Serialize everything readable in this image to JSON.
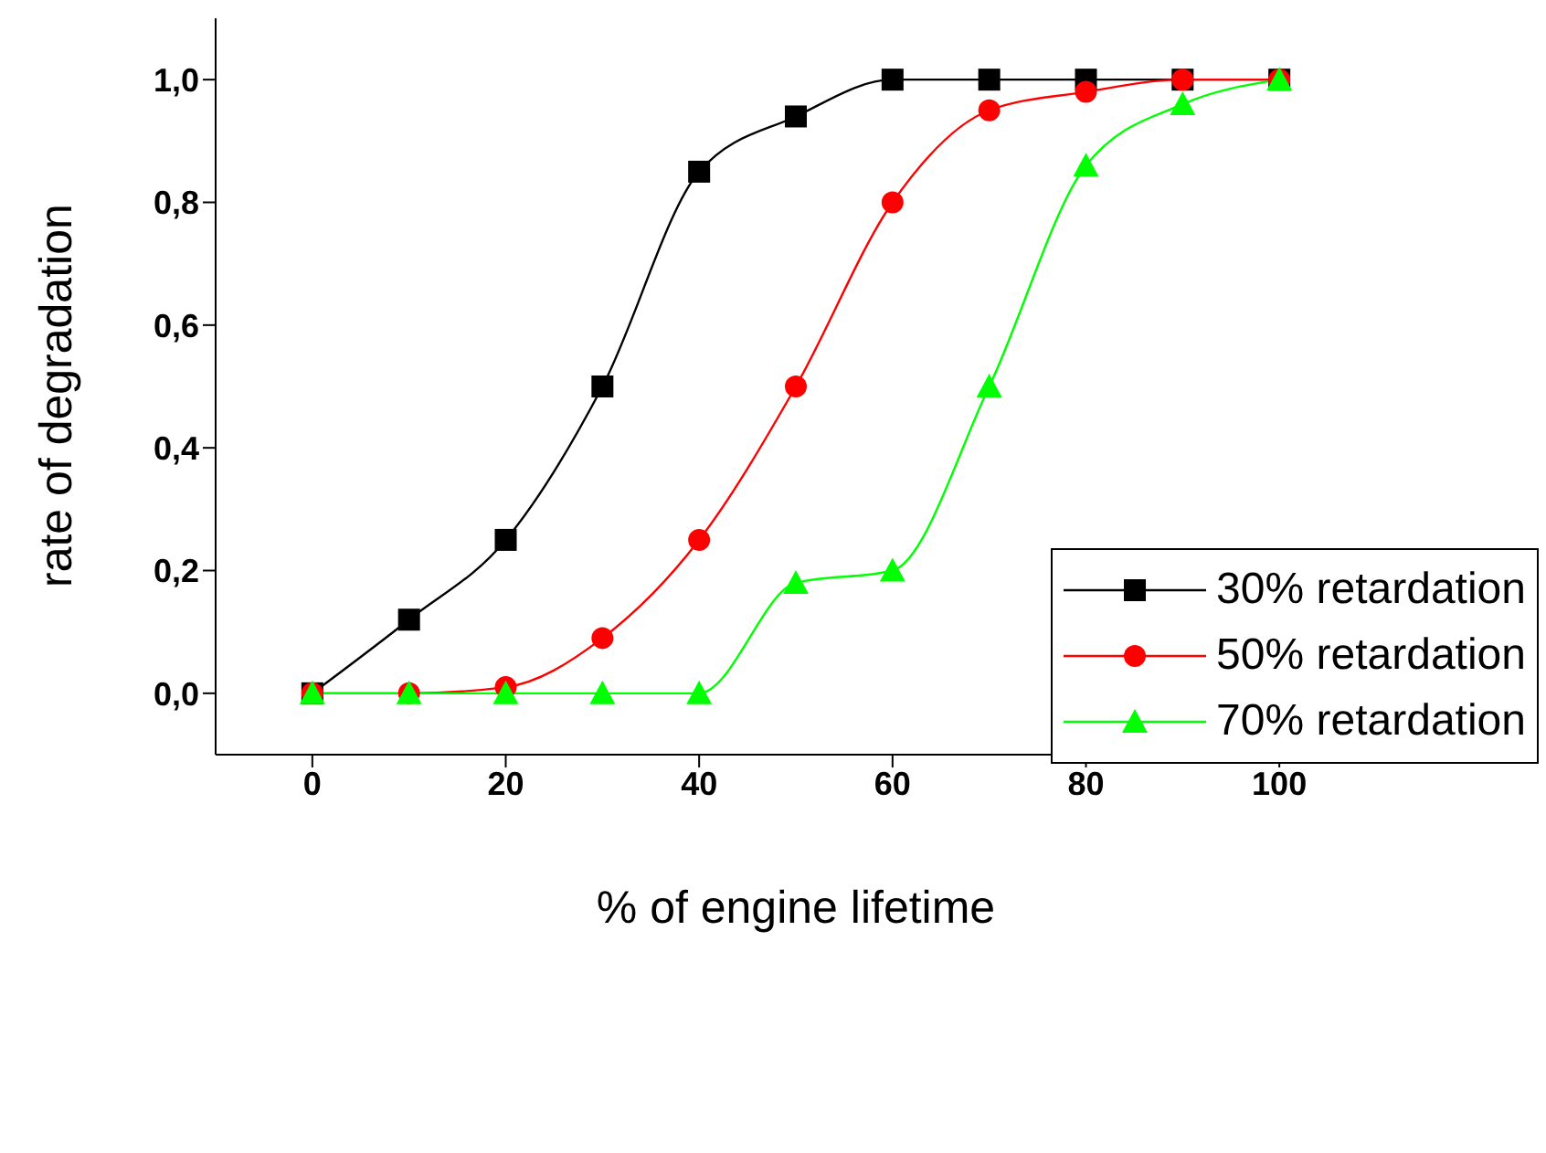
{
  "chart_data": {
    "type": "line",
    "xlabel": "% of engine lifetime",
    "ylabel": "rate of degradation",
    "x": [
      0,
      10,
      20,
      30,
      40,
      50,
      60,
      70,
      80,
      90,
      100
    ],
    "series": [
      {
        "name": "30% retardation",
        "color": "#000000",
        "marker": "square",
        "values": [
          0,
          0.12,
          0.25,
          0.5,
          0.85,
          0.94,
          1.0,
          1.0,
          1.0,
          1.0,
          1.0
        ]
      },
      {
        "name": "50% retardation",
        "color": "#ff0000",
        "marker": "circle",
        "values": [
          0,
          0,
          0.01,
          0.09,
          0.25,
          0.5,
          0.8,
          0.95,
          0.98,
          1.0,
          1.0
        ]
      },
      {
        "name": "70% retardation",
        "color": "#00ff00",
        "marker": "triangle",
        "values": [
          0,
          0,
          0,
          0,
          0,
          0.18,
          0.2,
          0.5,
          0.86,
          0.96,
          1.0
        ]
      }
    ],
    "xlim": [
      -10,
      110
    ],
    "xticks": [
      0,
      20,
      40,
      60,
      80,
      100
    ],
    "ylim": [
      -0.1,
      1.1
    ],
    "yticks": [
      {
        "value": 0,
        "label": "0,0"
      },
      {
        "value": 0.2,
        "label": "0,2"
      },
      {
        "value": 0.4,
        "label": "0,4"
      },
      {
        "value": 0.6,
        "label": "0,6"
      },
      {
        "value": 0.8,
        "label": "0,8"
      },
      {
        "value": 1.0,
        "label": "1,0"
      }
    ],
    "grid": false,
    "legend": "right",
    "line_style": "solid"
  }
}
